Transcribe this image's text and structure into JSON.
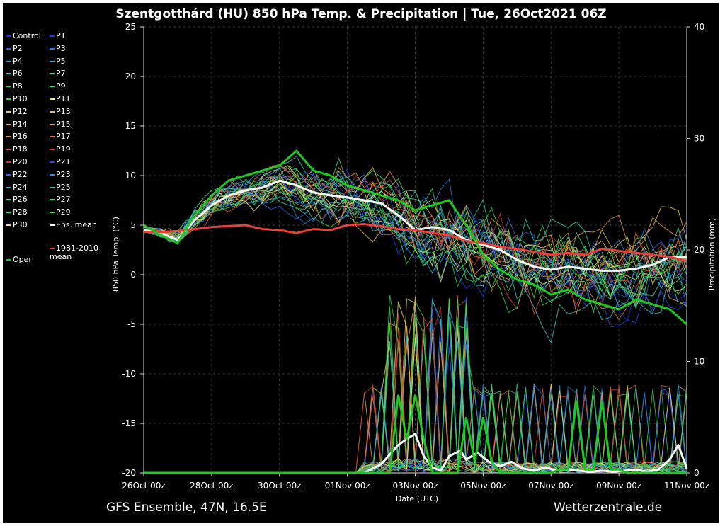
{
  "header": {
    "title": "Szentgotthárd  (HU)  850 hPa Temp. & Precipitation | Tue, 26Oct2021 06Z"
  },
  "footer": {
    "model": "GFS Ensemble, 47N, 16.5E",
    "source": "Wetterzentrale.de"
  },
  "colors": {
    "background": "#000000",
    "ens_mean": "#ffffff",
    "climate_mean": "#e8403a",
    "oper": "#22c522"
  },
  "chart_data": {
    "type": "line",
    "xlabel": "Date (UTC)",
    "ylabel": "850 hPa Temp. (°C)",
    "y2label": "Precipitation (mm)",
    "ylim": [
      -20,
      25
    ],
    "y2lim": [
      0,
      40
    ],
    "yticks": [
      -20,
      -15,
      -10,
      -5,
      0,
      5,
      10,
      15,
      20,
      25
    ],
    "y2ticks": [
      0,
      10,
      20,
      30,
      40
    ],
    "x_hours_range": [
      0,
      384
    ],
    "xticks": [
      {
        "h": 0,
        "label": "26Oct 00z"
      },
      {
        "h": 48,
        "label": "28Oct 00z"
      },
      {
        "h": 96,
        "label": "30Oct 00z"
      },
      {
        "h": 144,
        "label": "01Nov 00z"
      },
      {
        "h": 192,
        "label": "03Nov 00z"
      },
      {
        "h": 240,
        "label": "05Nov 00z"
      },
      {
        "h": 288,
        "label": "07Nov 00z"
      },
      {
        "h": 336,
        "label": "09Nov 00z"
      },
      {
        "h": 384,
        "label": "11Nov 00z"
      }
    ],
    "grid": true,
    "legend_position": "left",
    "legend": [
      {
        "name": "Control",
        "color": "#1c2fe0"
      },
      {
        "name": "P1",
        "color": "#1f3fd8"
      },
      {
        "name": "P2",
        "color": "#2a63d6"
      },
      {
        "name": "P3",
        "color": "#2e7bd4"
      },
      {
        "name": "P4",
        "color": "#2f98d0"
      },
      {
        "name": "P5",
        "color": "#37b0cc"
      },
      {
        "name": "P6",
        "color": "#3fc2b4"
      },
      {
        "name": "P7",
        "color": "#3fcf8c"
      },
      {
        "name": "P8",
        "color": "#3ad06a"
      },
      {
        "name": "P9",
        "color": "#3cd84a"
      },
      {
        "name": "P10",
        "color": "#4ad03a"
      },
      {
        "name": "P11",
        "color": "#e8e86a"
      },
      {
        "name": "P12",
        "color": "#e2d462"
      },
      {
        "name": "P13",
        "color": "#e4c05a"
      },
      {
        "name": "P14",
        "color": "#e8ac52"
      },
      {
        "name": "P15",
        "color": "#e8984a"
      },
      {
        "name": "P16",
        "color": "#e88442"
      },
      {
        "name": "P17",
        "color": "#e8703c"
      },
      {
        "name": "P18",
        "color": "#e05a38"
      },
      {
        "name": "P19",
        "color": "#d84832"
      },
      {
        "name": "P20",
        "color": "#c03a30"
      },
      {
        "name": "P21",
        "color": "#2b47d2"
      },
      {
        "name": "P22",
        "color": "#2f6ad4"
      },
      {
        "name": "P23",
        "color": "#3388d0"
      },
      {
        "name": "P24",
        "color": "#37a6cc"
      },
      {
        "name": "P25",
        "color": "#3bbfa8"
      },
      {
        "name": "P26",
        "color": "#3dcc88"
      },
      {
        "name": "P27",
        "color": "#3cd068"
      },
      {
        "name": "P28",
        "color": "#44d448"
      },
      {
        "name": "P29",
        "color": "#3cd83c"
      },
      {
        "name": "P30",
        "color": "#e8e070"
      },
      {
        "name": "Ens. mean",
        "color": "#ffffff"
      },
      {
        "name": "1981-2010 mean",
        "color": "#e8403a"
      },
      {
        "name": "Oper",
        "color": "#22c522"
      }
    ],
    "series": [
      {
        "name": "Ens. mean",
        "axis": "left",
        "x": [
          0,
          12,
          24,
          36,
          48,
          60,
          72,
          84,
          96,
          108,
          120,
          132,
          144,
          156,
          168,
          180,
          192,
          204,
          216,
          228,
          240,
          252,
          264,
          276,
          288,
          300,
          312,
          324,
          336,
          348,
          360,
          372,
          384
        ],
        "values": [
          4.5,
          4.2,
          3.5,
          5.5,
          7.0,
          8.0,
          8.5,
          8.8,
          9.5,
          9.0,
          8.3,
          8.0,
          7.8,
          7.5,
          7.2,
          6.0,
          4.5,
          4.8,
          4.5,
          3.5,
          3.0,
          2.5,
          1.5,
          0.8,
          0.5,
          0.8,
          0.6,
          0.4,
          0.4,
          0.6,
          1.0,
          1.8,
          1.8
        ]
      },
      {
        "name": "1981-2010 mean",
        "axis": "left",
        "x": [
          0,
          12,
          24,
          36,
          48,
          60,
          72,
          84,
          96,
          108,
          120,
          132,
          144,
          156,
          168,
          180,
          192,
          204,
          216,
          228,
          240,
          252,
          264,
          276,
          288,
          300,
          312,
          324,
          336,
          348,
          360,
          372,
          384
        ],
        "values": [
          4.3,
          4.3,
          4.4,
          4.6,
          4.8,
          4.9,
          5.0,
          4.6,
          4.5,
          4.2,
          4.6,
          4.5,
          5.0,
          5.1,
          4.9,
          4.6,
          4.5,
          4.2,
          4.0,
          3.4,
          3.2,
          2.8,
          2.6,
          2.3,
          2.0,
          2.2,
          2.0,
          2.6,
          2.4,
          2.2,
          2.0,
          1.8,
          1.4
        ]
      },
      {
        "name": "Oper",
        "axis": "left",
        "x": [
          0,
          12,
          24,
          36,
          48,
          60,
          72,
          84,
          96,
          108,
          120,
          132,
          144,
          156,
          168,
          180,
          192,
          204,
          216,
          228,
          240,
          252,
          264,
          276,
          288,
          300,
          312,
          324,
          336,
          348,
          360,
          372,
          384
        ],
        "values": [
          5.0,
          4.0,
          3.2,
          6.0,
          8.0,
          9.5,
          10.0,
          10.5,
          11.0,
          12.5,
          10.5,
          10.0,
          9.0,
          8.5,
          8.0,
          7.5,
          6.5,
          7.0,
          7.5,
          5.0,
          2.0,
          0.5,
          -0.5,
          -1.0,
          -2.0,
          -1.5,
          -2.5,
          -3.0,
          -3.5,
          -2.5,
          -3.0,
          -3.5,
          -5.0
        ]
      },
      {
        "name": "Ens. mean precipitation",
        "axis": "right",
        "x": [
          0,
          12,
          24,
          36,
          48,
          60,
          72,
          84,
          96,
          108,
          120,
          132,
          144,
          156,
          168,
          180,
          188,
          192,
          198,
          204,
          210,
          216,
          224,
          228,
          236,
          244,
          252,
          260,
          268,
          276,
          284,
          292,
          300,
          308,
          316,
          324,
          332,
          340,
          348,
          356,
          364,
          372,
          378,
          384
        ],
        "values": [
          0,
          0,
          0,
          0,
          0,
          0,
          0,
          0,
          0,
          0,
          0,
          0,
          0,
          0,
          0.8,
          2.5,
          3.2,
          3.5,
          1.5,
          0.5,
          0.2,
          1.5,
          2.0,
          1.2,
          1.8,
          1.0,
          0.6,
          1.0,
          0.4,
          0.2,
          0.5,
          0.2,
          0.3,
          0.2,
          0.1,
          0.2,
          0.1,
          0.2,
          0.3,
          0.1,
          0.3,
          1.2,
          2.5,
          0.4
        ]
      }
    ]
  }
}
